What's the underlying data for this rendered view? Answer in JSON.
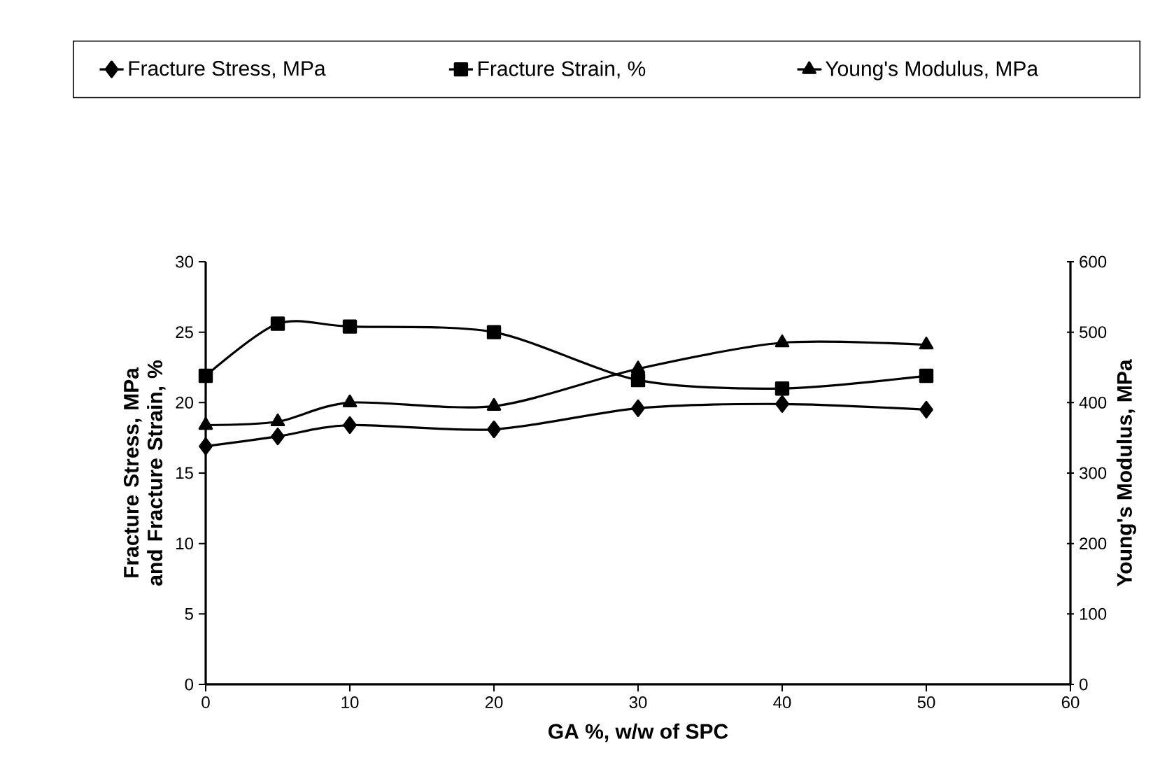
{
  "chart_data": {
    "type": "line",
    "xlabel": "GA %, w/w of SPC",
    "ylabel": "Fracture Stress, MPa and Fracture Strain, %",
    "y2label": "Young's Modulus, MPa",
    "x": [
      0,
      5,
      10,
      20,
      30,
      40,
      50
    ],
    "series": [
      {
        "name": "Fracture Stress, MPa",
        "color": "#000000",
        "marker": "diamond",
        "values": [
          16.9,
          17.6,
          18.4,
          18.1,
          19.6,
          19.9,
          19.5
        ]
      },
      {
        "name": "Fracture Strain, %",
        "color": "#000000",
        "marker": "square",
        "values": [
          21.9,
          25.6,
          25.4,
          25.0,
          21.6,
          21.0,
          21.9
        ]
      },
      {
        "name": "Young's Modulus, MPa",
        "color": "#000000",
        "marker": "triangle",
        "axis": "y2",
        "values": [
          368,
          373,
          400,
          395,
          448,
          485,
          482
        ]
      }
    ],
    "xlim": [
      0,
      60
    ],
    "xticks": [
      0,
      10,
      20,
      30,
      40,
      50,
      60
    ],
    "ylim": [
      0,
      30
    ],
    "yticks": [
      0,
      5,
      10,
      15,
      20,
      25,
      30
    ],
    "y2lim": [
      0,
      600
    ],
    "y2ticks": [
      0,
      100,
      200,
      300,
      400,
      500,
      600
    ],
    "grid": false,
    "legend": "top",
    "line_style": "solid"
  }
}
